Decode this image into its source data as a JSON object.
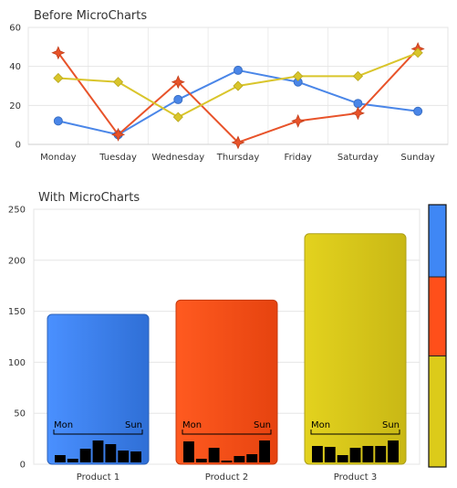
{
  "chart_data": [
    {
      "type": "line",
      "title": "Before MicroCharts",
      "categories": [
        "Monday",
        "Tuesday",
        "Wednesday",
        "Thursday",
        "Friday",
        "Saturday",
        "Sunday"
      ],
      "ylim": [
        0,
        60
      ],
      "yticks": [
        0,
        20,
        40,
        60
      ],
      "grid": true,
      "series": [
        {
          "values": [
            12,
            5,
            23,
            38,
            32,
            21,
            17
          ],
          "color": "#4a86e8",
          "marker": "circle"
        },
        {
          "values": [
            47,
            5,
            32,
            1,
            12,
            16,
            49
          ],
          "color": "#e8532a",
          "marker": "star"
        },
        {
          "values": [
            34,
            32,
            14,
            30,
            35,
            35,
            47
          ],
          "color": "#d9c52b",
          "marker": "diamond"
        }
      ]
    },
    {
      "type": "bar",
      "title": "With MicroCharts",
      "categories": [
        "Product 1",
        "Product 2",
        "Product 3"
      ],
      "values": [
        147,
        161,
        226
      ],
      "colors": [
        "#3f87f5",
        "#ff4f1a",
        "#dccb1a"
      ],
      "ylim": [
        0,
        250
      ],
      "yticks": [
        0,
        50,
        100,
        150,
        200,
        250
      ],
      "grid": true,
      "microcharts": {
        "start_label": "Mon",
        "end_label": "Sun",
        "type": "bar",
        "values": [
          [
            8,
            4,
            15,
            24,
            20,
            13,
            12
          ],
          [
            23,
            4,
            16,
            2,
            7,
            9,
            24
          ],
          [
            18,
            17,
            8,
            16,
            18,
            18,
            24
          ]
        ],
        "ylim": [
          0,
          25
        ]
      },
      "legend": {
        "placement": "right",
        "type": "stacked-color-bar"
      }
    }
  ]
}
